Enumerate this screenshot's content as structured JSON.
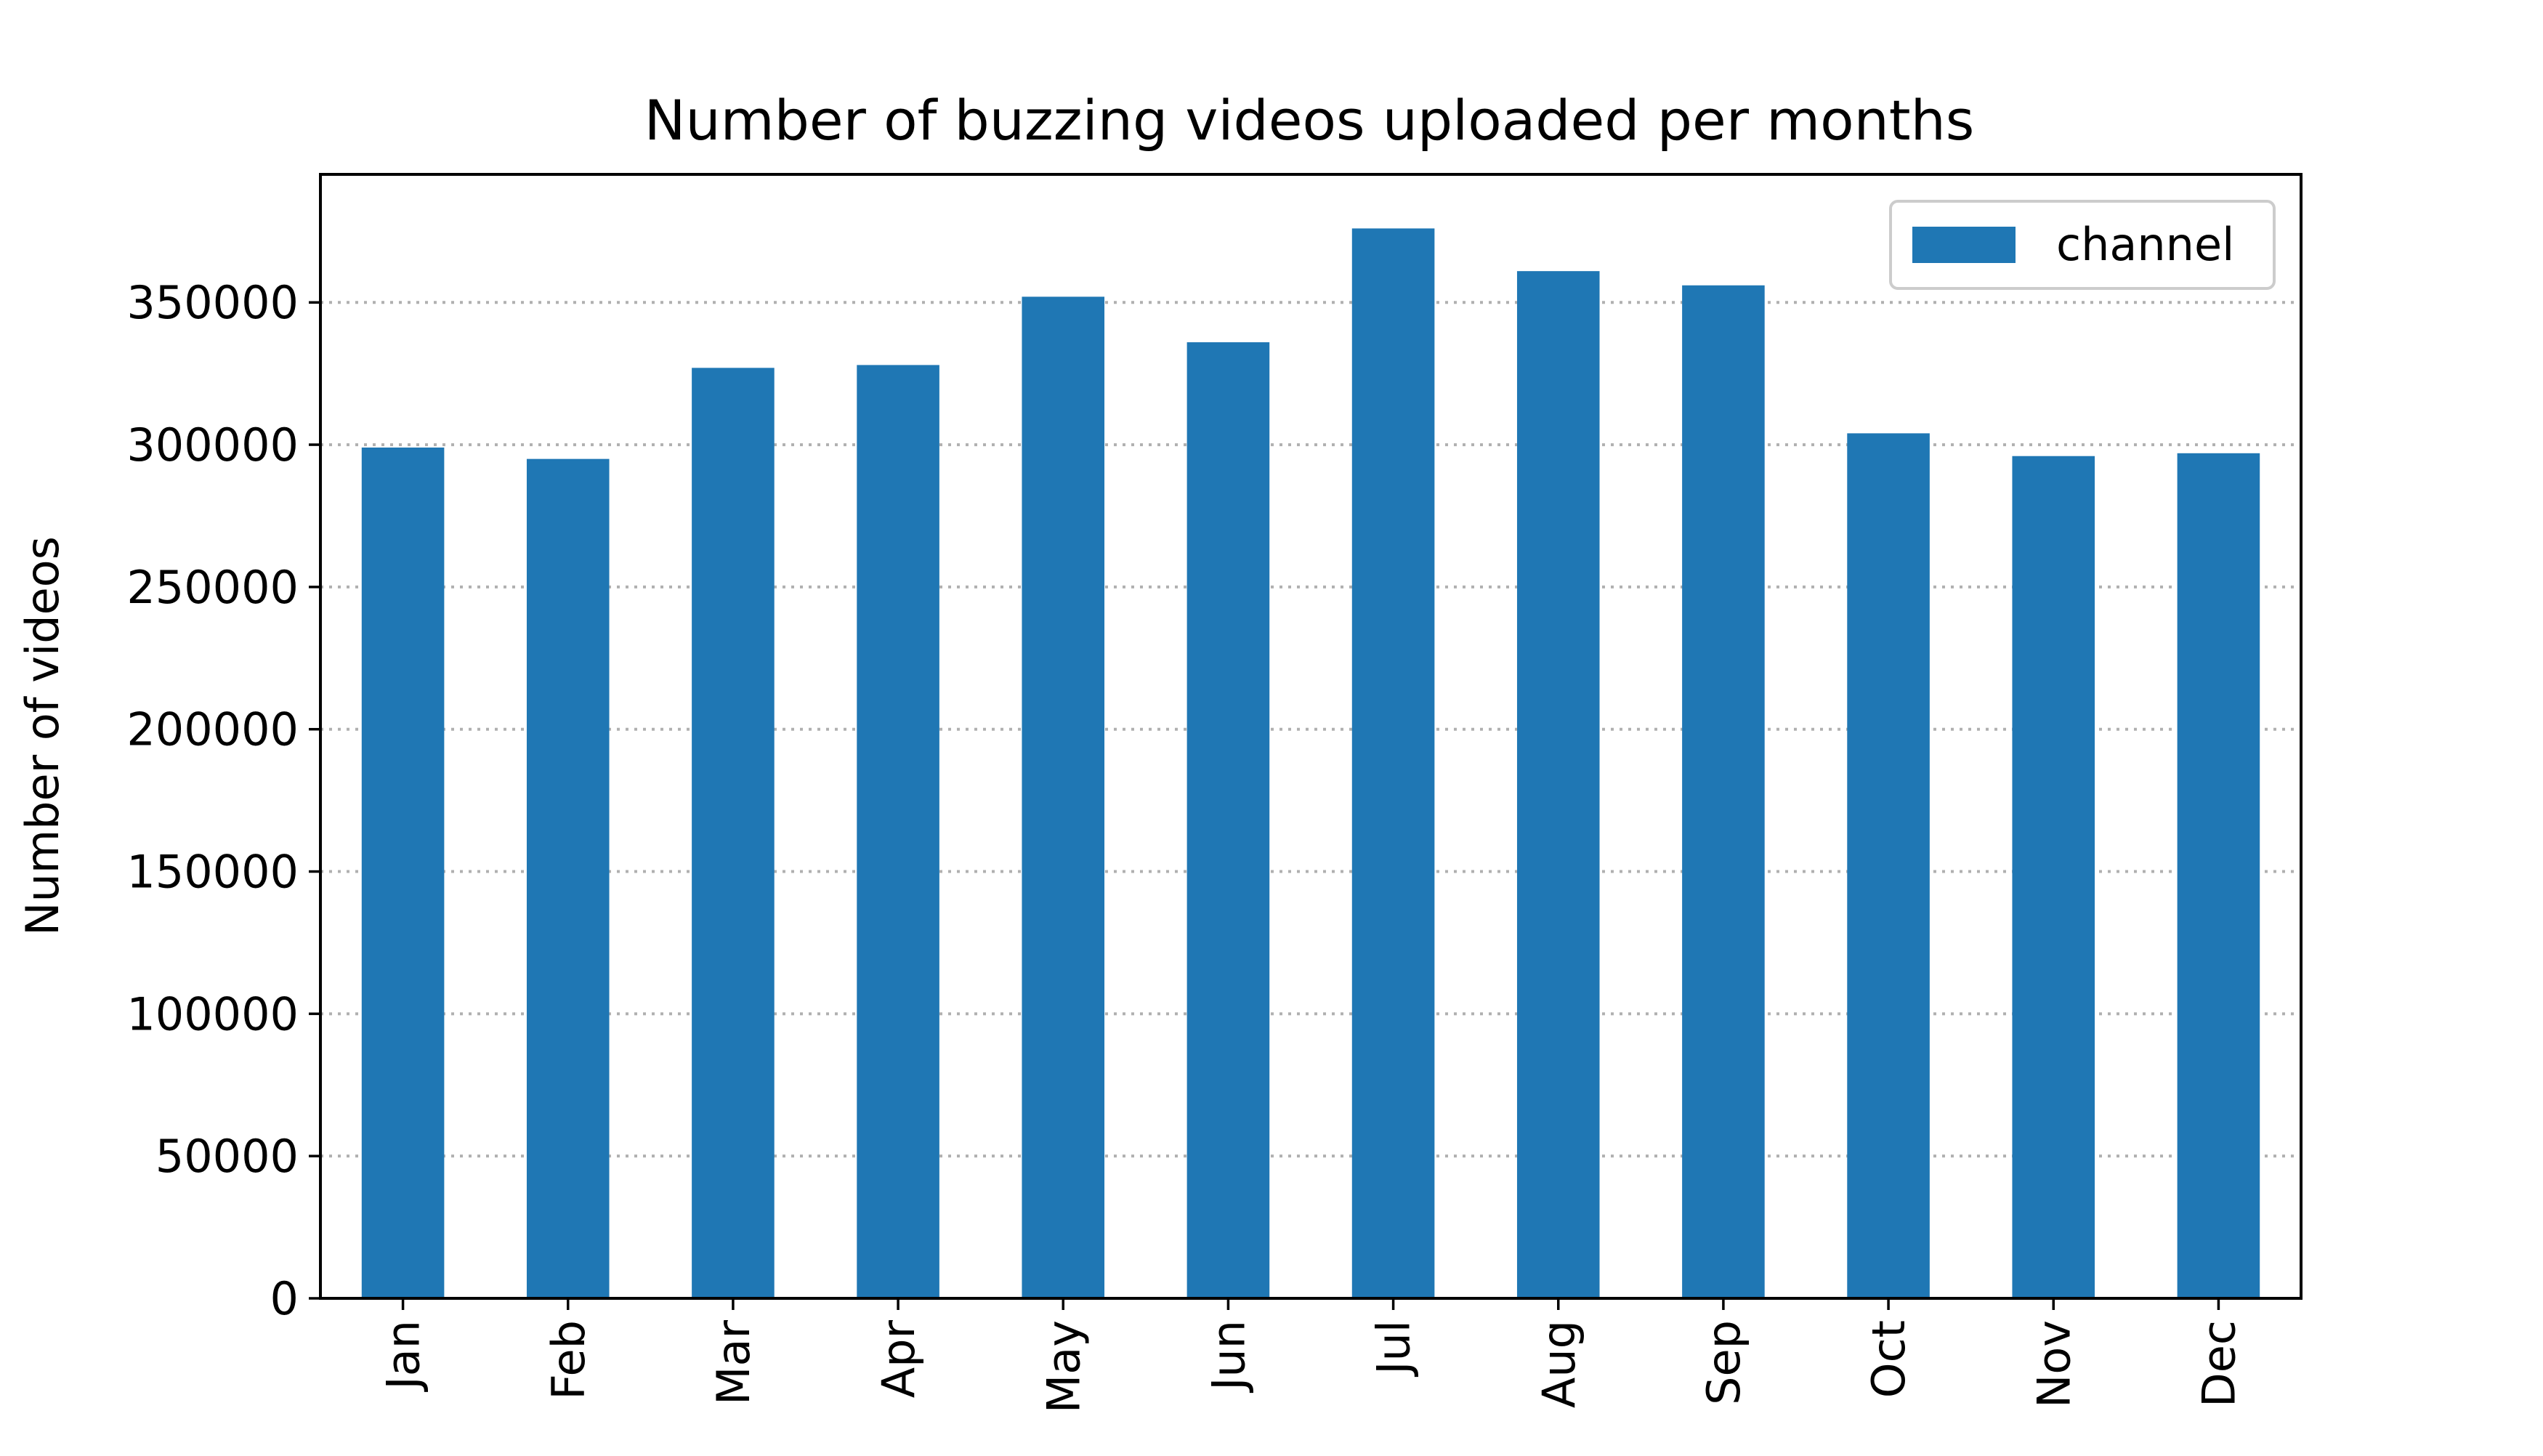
{
  "chart_data": {
    "type": "bar",
    "title": "Number of buzzing videos uploaded per months",
    "xlabel": "",
    "ylabel": "Number of videos",
    "categories": [
      "Jan",
      "Feb",
      "Mar",
      "Apr",
      "May",
      "Jun",
      "Jul",
      "Aug",
      "Sep",
      "Oct",
      "Nov",
      "Dec"
    ],
    "series": [
      {
        "name": "channel",
        "color": "#1f77b4",
        "values": [
          299000,
          295000,
          327000,
          328000,
          352000,
          336000,
          376000,
          361000,
          356000,
          304000,
          296000,
          297000
        ]
      }
    ],
    "ylim": [
      0,
      395000
    ],
    "yticks": [
      0,
      50000,
      100000,
      150000,
      200000,
      250000,
      300000,
      350000
    ],
    "grid": "y-dotted",
    "legend_position": "top-right"
  }
}
